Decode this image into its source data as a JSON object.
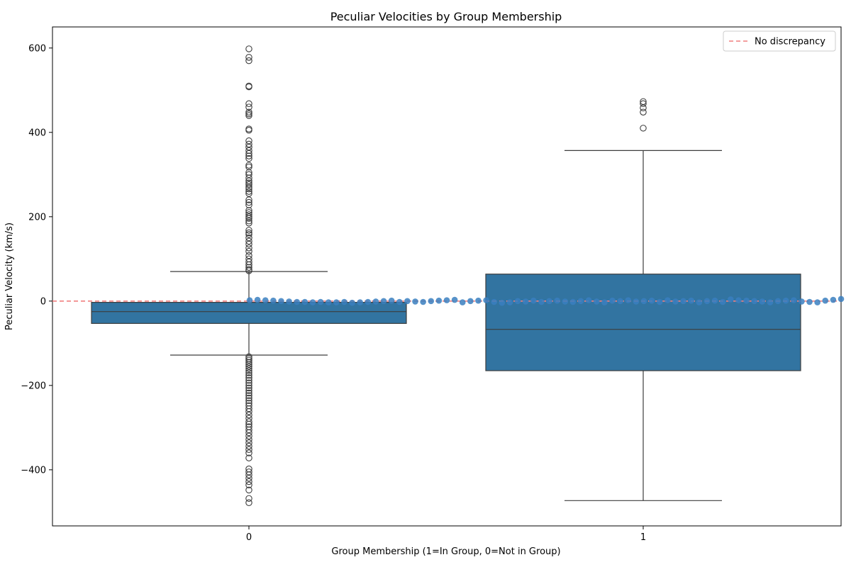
{
  "chart_data": {
    "type": "box",
    "title": "Peculiar Velocities by Group Membership",
    "xlabel": "Group Membership (1=In Group, 0=Not in Group)",
    "ylabel": "Peculiar Velocity (km/s)",
    "categories": [
      "0",
      "1"
    ],
    "ylim": [
      -533,
      650
    ],
    "yticks": [
      -400,
      -200,
      0,
      200,
      400,
      600
    ],
    "ytick_labels": [
      "−400",
      "−200",
      "0",
      "200",
      "400",
      "600"
    ],
    "grid": false,
    "box_color": "#3274a1",
    "line_color": "#3d3d3d",
    "boxes": [
      {
        "category": "0",
        "whisker_low": -128,
        "q1": -53,
        "median": -25,
        "q3": -3,
        "whisker_high": 70,
        "outliers": [
          598,
          578,
          570,
          510,
          508,
          468,
          460,
          448,
          444,
          440,
          408,
          405,
          380,
          372,
          365,
          357,
          350,
          344,
          338,
          322,
          318,
          305,
          300,
          292,
          285,
          280,
          276,
          270,
          266,
          260,
          255,
          240,
          234,
          228,
          215,
          210,
          205,
          200,
          196,
          190,
          185,
          168,
          162,
          158,
          150,
          142,
          135,
          126,
          118,
          108,
          100,
          93,
          86,
          80,
          75,
          72,
          -132,
          -136,
          -140,
          -145,
          -150,
          -155,
          -160,
          -165,
          -170,
          -176,
          -182,
          -188,
          -194,
          -200,
          -206,
          -212,
          -218,
          -224,
          -230,
          -236,
          -242,
          -248,
          -255,
          -262,
          -270,
          -278,
          -286,
          -292,
          -298,
          -305,
          -312,
          -320,
          -328,
          -336,
          -344,
          -352,
          -360,
          -372,
          -398,
          -405,
          -412,
          -420,
          -428,
          -436,
          -448,
          -468,
          -478
        ]
      },
      {
        "category": "1",
        "whisker_low": -473,
        "q1": -165,
        "median": -67,
        "q3": 64,
        "whisker_high": 357,
        "outliers": [
          473,
          468,
          458,
          448,
          410
        ]
      }
    ],
    "scatter": {
      "color": "#3a7fbf",
      "x": [
        0.0,
        0.02,
        0.04,
        0.06,
        0.08,
        0.1,
        0.12,
        0.14,
        0.16,
        0.18,
        0.2,
        0.22,
        0.24,
        0.26,
        0.28,
        0.3,
        0.32,
        0.34,
        0.36,
        0.38,
        0.4,
        0.42,
        0.44,
        0.46,
        0.48,
        0.5,
        0.52,
        0.54,
        0.56,
        0.58,
        0.6,
        0.62,
        0.64,
        0.66,
        0.68,
        0.7,
        0.72,
        0.74,
        0.76,
        0.78,
        0.8,
        0.82,
        0.84,
        0.86,
        0.88,
        0.9,
        0.92,
        0.94,
        0.96,
        0.98,
        1.0,
        1.02,
        1.04,
        1.06,
        1.08,
        1.1,
        1.12,
        1.14,
        1.16,
        1.18,
        1.2,
        1.22,
        1.24,
        1.26,
        1.28,
        1.3,
        1.32,
        1.34,
        1.36,
        1.38,
        1.4,
        1.42,
        1.44,
        1.46,
        1.48,
        1.5
      ],
      "y": [
        2,
        3,
        2,
        1,
        0,
        -1,
        -2,
        -2,
        -3,
        -2,
        -3,
        -3,
        -2,
        -4,
        -3,
        -2,
        -1,
        0,
        1,
        -2,
        0,
        -1,
        -2,
        0,
        1,
        2,
        3,
        -3,
        0,
        1,
        2,
        -2,
        -4,
        -3,
        0,
        -1,
        1,
        -2,
        0,
        1,
        -1,
        -2,
        0,
        2,
        -1,
        -3,
        1,
        0,
        2,
        -1,
        0,
        1,
        -2,
        2,
        -1,
        0,
        1,
        -3,
        0,
        1,
        -2,
        4,
        2,
        1,
        0,
        -1,
        -3,
        0,
        1,
        2,
        -1,
        -2,
        -3,
        1,
        3,
        5
      ]
    },
    "reference_line": {
      "y": 0,
      "color": "#f07f7f",
      "style": "dashed"
    },
    "legend": {
      "position": "top-right",
      "entries": [
        {
          "label": "No discrepancy"
        }
      ]
    }
  }
}
